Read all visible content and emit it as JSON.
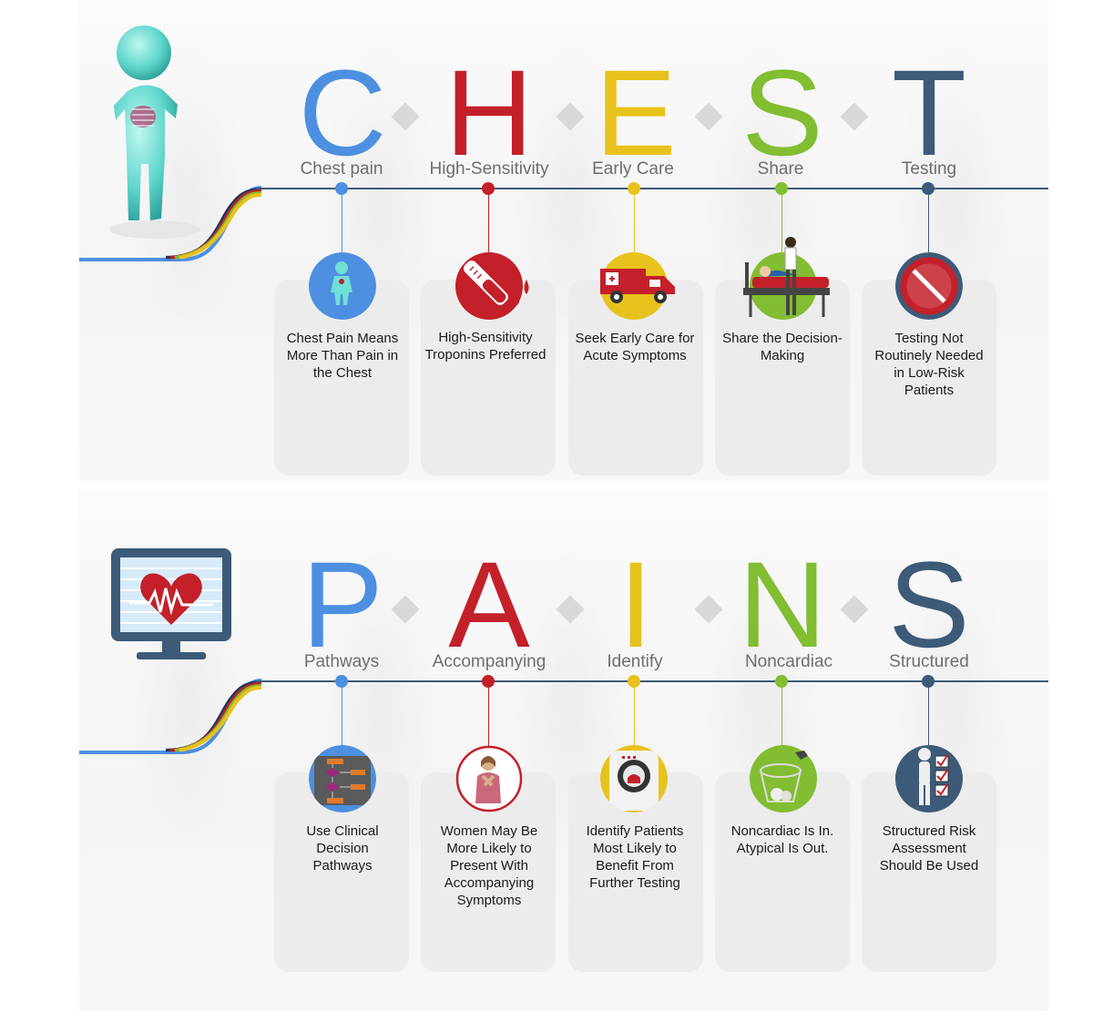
{
  "colors": {
    "blue": "#4d8fe0",
    "red": "#c3202a",
    "yellow": "#e8c21c",
    "green": "#82bd32",
    "navy": "#3d5a78"
  },
  "chest": {
    "letters": [
      "C",
      "H",
      "E",
      "S",
      "T"
    ],
    "words": [
      "Chest pain",
      "High-Sensitivity",
      "Early Care",
      "Share",
      "Testing"
    ],
    "cards": [
      "Chest Pain Means More Than Pain in the Chest",
      "High-Sensitivity Troponins Preferred",
      "Seek Early Care for Acute Symptoms",
      "Share the Decision-Making",
      "Testing Not Routinely Needed in Low-Risk Patients"
    ],
    "icons": [
      "human-figure-icon",
      "blood-tube-icon",
      "ambulance-icon",
      "hospital-bed-icon",
      "prohibition-icon"
    ]
  },
  "pains": {
    "letters": [
      "P",
      "A",
      "I",
      "N",
      "S"
    ],
    "words": [
      "Pathways",
      "Accompanying",
      "Identify",
      "Noncardiac",
      "Structured"
    ],
    "cards": [
      "Use Clinical Decision Pathways",
      "Women May Be More Likely to Present With Accompanying Symptoms",
      "Identify Patients Most Likely to Benefit From Further Testing",
      "Noncardiac Is In. Atypical Is Out.",
      "Structured Risk Assessment Should Be Used"
    ],
    "icons": [
      "flowchart-icon",
      "woman-patient-icon",
      "ct-scanner-icon",
      "trash-bin-icon",
      "checklist-icon"
    ]
  }
}
